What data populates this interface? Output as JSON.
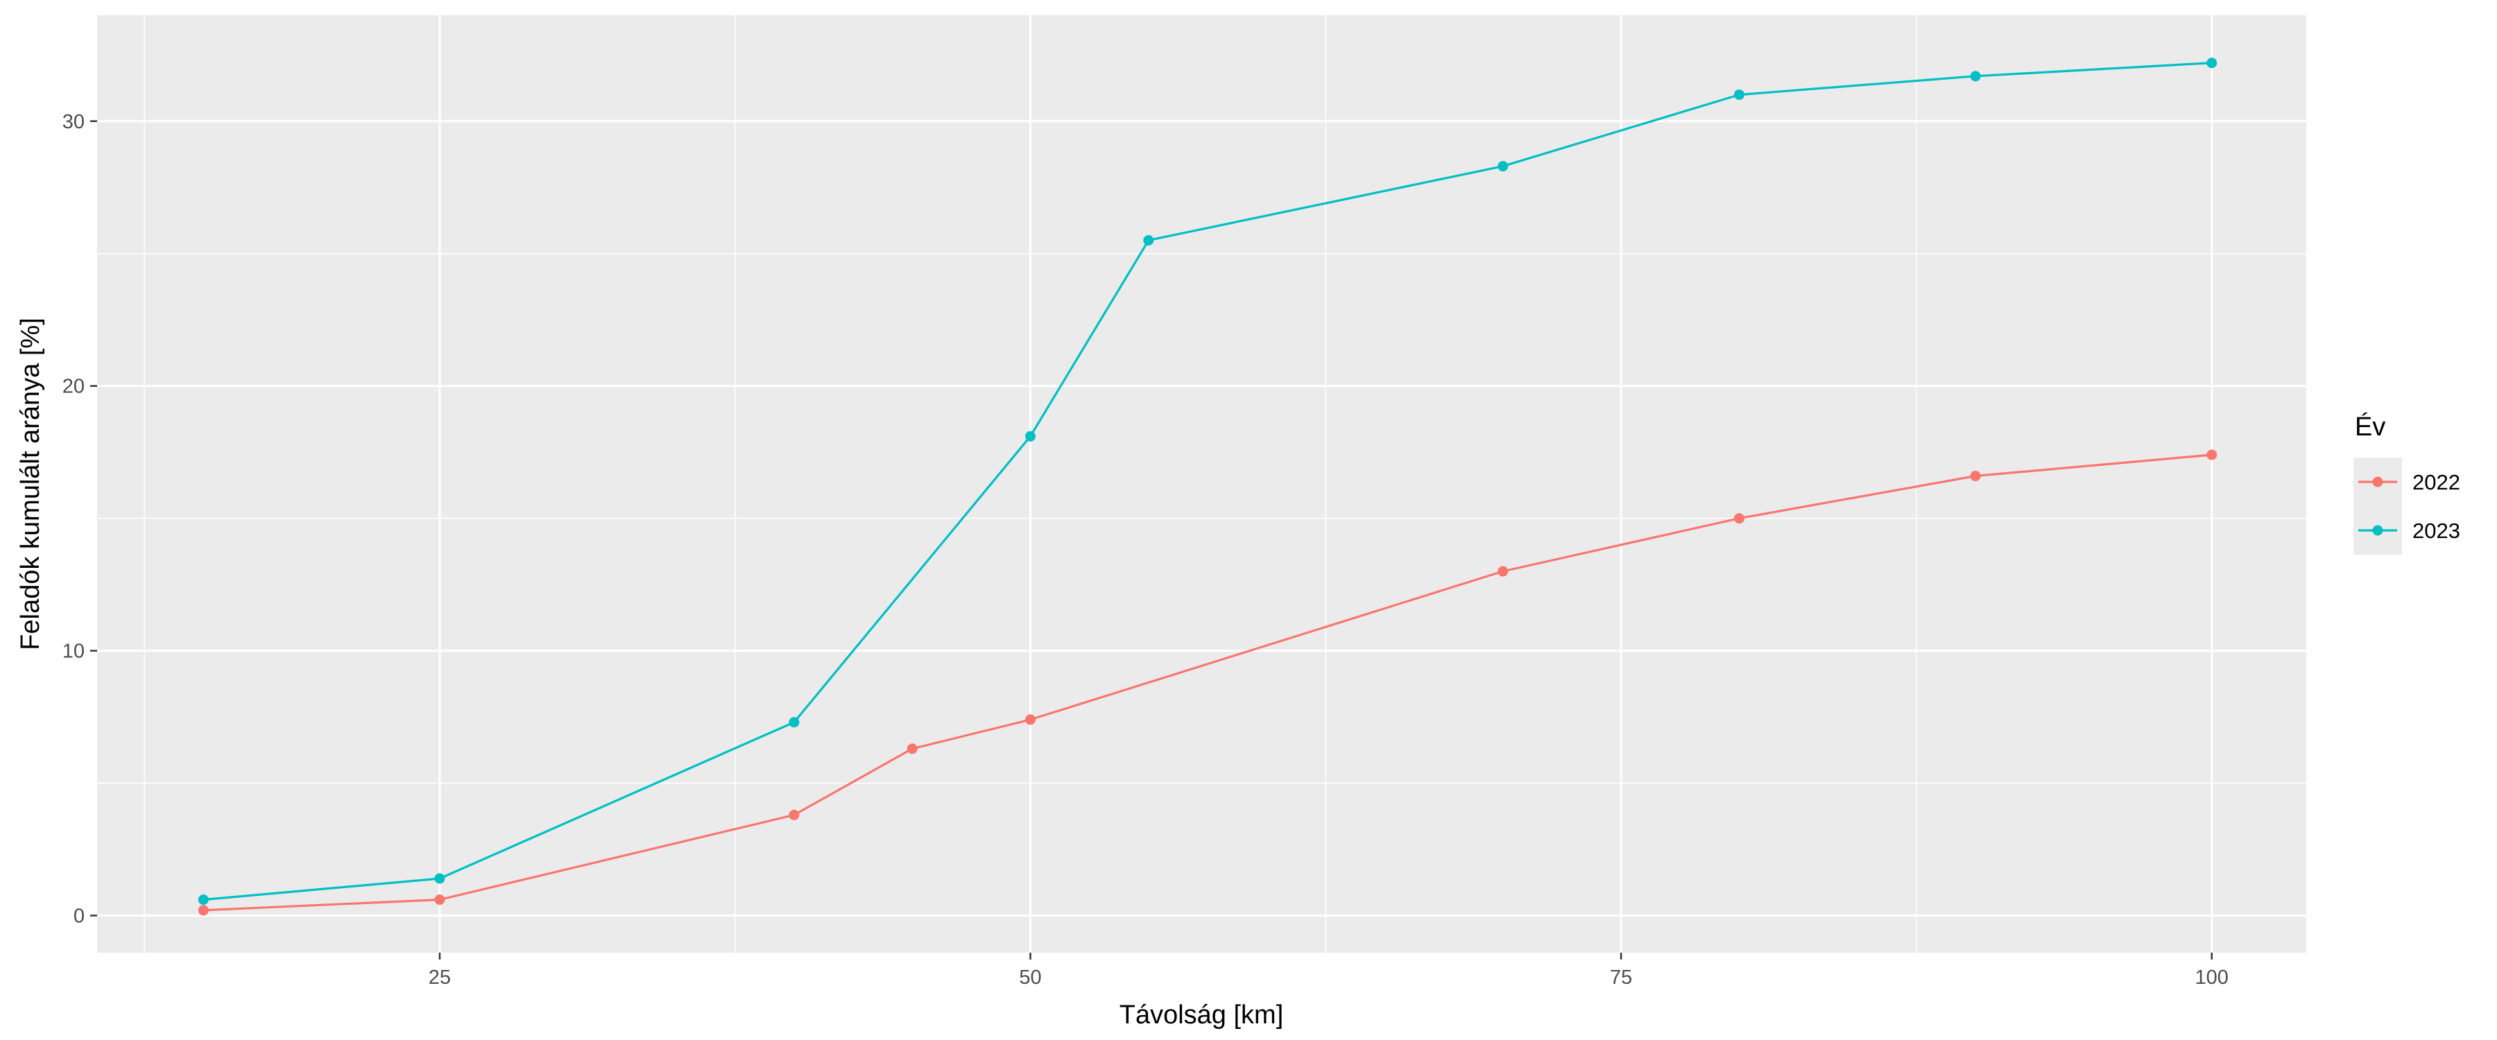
{
  "chart_data": {
    "type": "line",
    "xlabel": "Távolság [km]",
    "ylabel": "Feladók kumulált aránya [%]",
    "xlim": [
      10.5,
      104
    ],
    "ylim": [
      -1.4,
      34
    ],
    "x_ticks": [
      25,
      50,
      75,
      100
    ],
    "x_tick_labels": [
      "25",
      "50",
      "75",
      "100"
    ],
    "y_ticks": [
      0,
      10,
      20,
      30
    ],
    "y_tick_labels": [
      "0",
      "10",
      "20",
      "30"
    ],
    "grid": true,
    "legend": {
      "title": "Év",
      "position": "right"
    },
    "series": [
      {
        "name": "2022",
        "color": "#F8766D",
        "x": [
          15,
          25,
          40,
          45,
          50,
          70,
          80,
          90,
          100
        ],
        "y": [
          0.2,
          0.6,
          3.8,
          6.3,
          7.4,
          13.0,
          15.0,
          16.6,
          17.4
        ]
      },
      {
        "name": "2023",
        "color": "#00BFC4",
        "x": [
          15,
          25,
          40,
          50,
          55,
          70,
          80,
          90,
          100
        ],
        "y": [
          0.6,
          1.4,
          7.3,
          18.1,
          25.5,
          28.3,
          31.0,
          31.7,
          32.2
        ]
      }
    ]
  }
}
